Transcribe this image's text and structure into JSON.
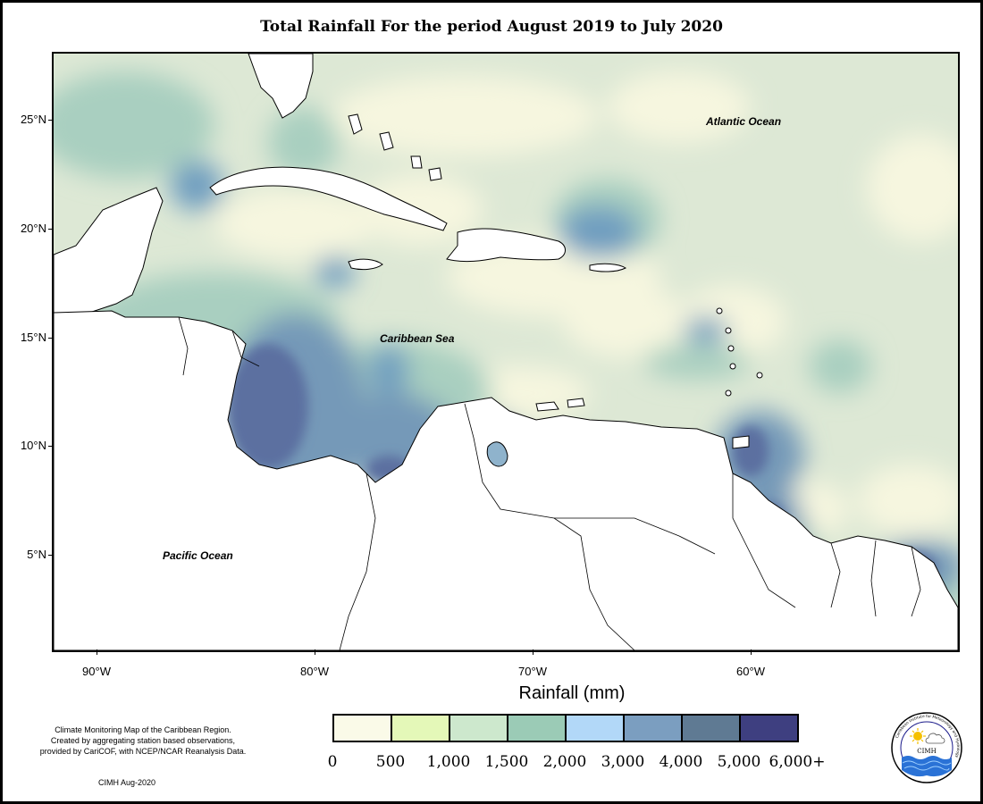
{
  "title": "Total Rainfall For the period August 2019 to July 2020",
  "map": {
    "y_axis": [
      "25°N",
      "20°N",
      "15°N",
      "10°N",
      "5°N"
    ],
    "x_axis": [
      "90°W",
      "80°W",
      "70°W",
      "60°W"
    ],
    "labels": {
      "atlantic": "Atlantic Ocean",
      "caribbean": "Caribbean Sea",
      "pacific": "Pacific Ocean"
    }
  },
  "legend": {
    "title": "Rainfall (mm)",
    "colors": [
      "#fafae8",
      "#e4f8b8",
      "#cde8cd",
      "#9bcbb6",
      "#b2d8f8",
      "#7b9ec0",
      "#5f7a93",
      "#3e3f80"
    ],
    "labels": [
      "0",
      "500",
      "1,000",
      "1,500",
      "2,000",
      "3,000",
      "4,000",
      "5,000",
      "6,000+"
    ]
  },
  "credits": {
    "lines": [
      "Climate Monitoring Map of the Caribbean Region.",
      "Created by aggregating station based observations,",
      "provided by CariCOF, with NCEP/NCAR Reanalysis Data."
    ],
    "stamp": "CIMH Aug-2020",
    "logo_text": "CIMH",
    "logo_ring_text": "Caribbean Institute for Meteorology and Hydrology"
  }
}
